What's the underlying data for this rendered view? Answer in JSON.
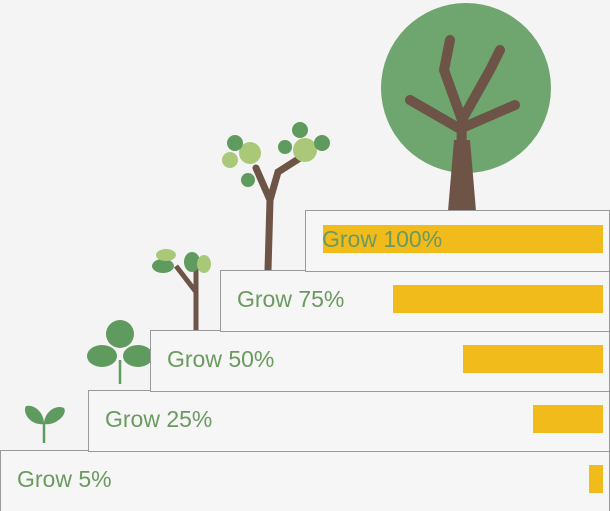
{
  "chart_data": {
    "type": "bar",
    "categories": [
      "Grow 5%",
      "Grow 25%",
      "Grow 50%",
      "Grow 75%",
      "Grow 100%"
    ],
    "values": [
      5,
      25,
      50,
      75,
      100
    ],
    "color": "#f2bb1c"
  }
}
